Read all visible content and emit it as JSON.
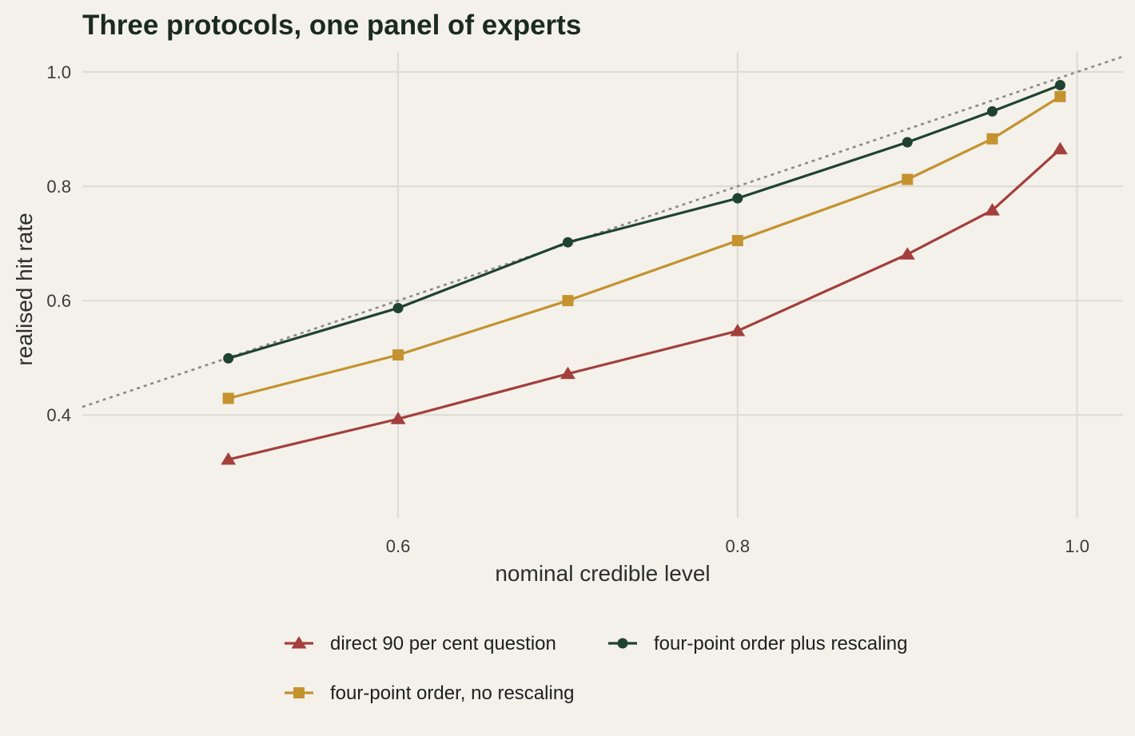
{
  "chart_data": {
    "type": "line",
    "title": "Three protocols, one panel of experts",
    "xlabel": "nominal credible level",
    "ylabel": "realised hit rate",
    "xlim": [
      0.414,
      1.027
    ],
    "ylim": [
      0.22,
      1.035
    ],
    "xticks": [
      0.6,
      0.8,
      1.0
    ],
    "yticks": [
      0.4,
      0.6,
      0.8,
      1.0
    ],
    "xtick_labels": [
      "0.6",
      "0.8",
      "1.0"
    ],
    "ytick_labels": [
      "0.4",
      "0.6",
      "0.8",
      "1.0"
    ],
    "grid": true,
    "legend_position": "bottom",
    "reference_line": {
      "style": "dotted",
      "color": "#8a8a84",
      "slope": 1,
      "intercept": 0
    },
    "series": [
      {
        "name": "direct 90 per cent question",
        "marker": "triangle",
        "color": "#a33f3c",
        "x": [
          0.5,
          0.6,
          0.7,
          0.8,
          0.9,
          0.95,
          0.99
        ],
        "y": [
          0.322,
          0.393,
          0.472,
          0.547,
          0.681,
          0.758,
          0.865
        ]
      },
      {
        "name": "four-point order plus rescaling",
        "marker": "circle",
        "color": "#1f4330",
        "x": [
          0.5,
          0.6,
          0.7,
          0.8,
          0.9,
          0.95,
          0.99
        ],
        "y": [
          0.499,
          0.587,
          0.702,
          0.779,
          0.877,
          0.931,
          0.977
        ]
      },
      {
        "name": "four-point order, no rescaling",
        "marker": "square",
        "color": "#c4922f",
        "x": [
          0.5,
          0.6,
          0.7,
          0.8,
          0.9,
          0.95,
          0.99
        ],
        "y": [
          0.429,
          0.505,
          0.6,
          0.705,
          0.812,
          0.883,
          0.957
        ]
      }
    ]
  }
}
